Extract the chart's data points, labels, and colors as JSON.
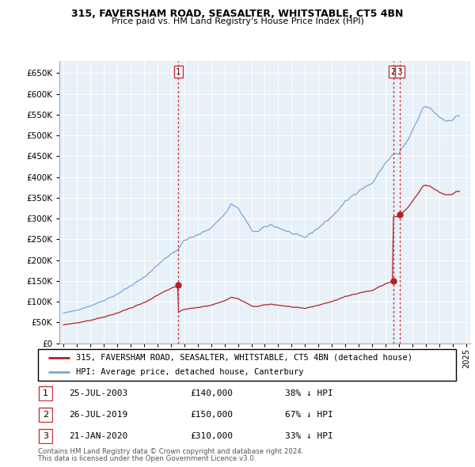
{
  "title1": "315, FAVERSHAM ROAD, SEASALTER, WHITSTABLE, CT5 4BN",
  "title2": "Price paid vs. HM Land Registry's House Price Index (HPI)",
  "legend_label1": "315, FAVERSHAM ROAD, SEASALTER, WHITSTABLE, CT5 4BN (detached house)",
  "legend_label2": "HPI: Average price, detached house, Canterbury",
  "transactions": [
    {
      "num": 1,
      "date": "25-JUL-2003",
      "price": 140000,
      "pct": "38%",
      "year": 2003.57
    },
    {
      "num": 2,
      "date": "26-JUL-2019",
      "price": 150000,
      "pct": "67%",
      "year": 2019.57
    },
    {
      "num": 3,
      "date": "21-JAN-2020",
      "price": 310000,
      "pct": "33%",
      "year": 2020.05
    }
  ],
  "footnote1": "Contains HM Land Registry data © Crown copyright and database right 2024.",
  "footnote2": "This data is licensed under the Open Government Licence v3.0.",
  "hpi_color": "#7aa7d0",
  "property_color": "#b22222",
  "vline_color": "#cc3333",
  "plot_bg": "#e8f0f8",
  "ylim": [
    0,
    700000
  ],
  "yticks": [
    0,
    50000,
    100000,
    150000,
    200000,
    250000,
    300000,
    350000,
    400000,
    450000,
    500000,
    550000,
    600000,
    650000
  ]
}
